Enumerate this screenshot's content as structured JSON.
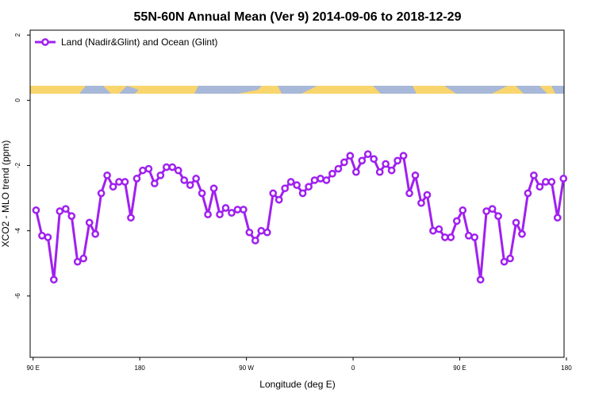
{
  "chart_data": {
    "type": "line",
    "title": "55N-60N Annual Mean (Ver 9)   2014-09-06 to 2018-12-29",
    "x_label": "Longitude (deg E)",
    "y_label": "XCO2 - MLO trend (ppm)",
    "series": [
      {
        "name": "Land (Nadir&Glint) and Ocean (Glint)",
        "color": "#a020f0",
        "x": [
          92.5,
          97.5,
          102.5,
          107.5,
          112.5,
          117.5,
          122.5,
          127.5,
          132.5,
          137.5,
          142.5,
          147.5,
          152.5,
          157.5,
          162.5,
          167.5,
          172.5,
          177.5,
          182.5,
          187.5,
          192.5,
          197.5,
          202.5,
          207.5,
          212.5,
          217.5,
          222.5,
          227.5,
          232.5,
          237.5,
          242.5,
          247.5,
          252.5,
          257.5,
          262.5,
          267.5,
          272.5,
          277.5,
          282.5,
          287.5,
          292.5,
          297.5,
          302.5,
          307.5,
          312.5,
          317.5,
          322.5,
          327.5,
          332.5,
          337.5,
          342.5,
          347.5,
          352.5,
          357.5,
          362.5,
          367.5,
          372.5,
          377.5,
          382.5,
          387.5,
          392.5,
          397.5,
          402.5,
          407.5,
          412.5,
          417.5,
          422.5,
          427.5,
          432.5,
          437.5,
          442.5,
          447.5,
          452.5,
          457.5,
          462.5,
          467.5,
          472.5,
          477.5,
          482.5,
          487.5,
          492.5,
          497.5,
          502.5,
          507.5,
          512.5,
          517.5,
          522.5,
          527.5,
          532.5,
          537.5
        ],
        "values": [
          -3.37,
          -4.15,
          -4.2,
          -5.5,
          -3.4,
          -3.33,
          -3.55,
          -4.95,
          -4.85,
          -3.75,
          -4.1,
          -2.85,
          -2.3,
          -2.65,
          -2.5,
          -2.5,
          -3.6,
          -2.4,
          -2.15,
          -2.1,
          -2.55,
          -2.3,
          -2.05,
          -2.05,
          -2.15,
          -2.45,
          -2.6,
          -2.4,
          -2.85,
          -3.5,
          -2.7,
          -3.5,
          -3.3,
          -3.45,
          -3.35,
          -3.35,
          -4.05,
          -4.3,
          -4.0,
          -4.05,
          -2.85,
          -3.05,
          -2.7,
          -2.5,
          -2.6,
          -2.85,
          -2.65,
          -2.45,
          -2.4,
          -2.45,
          -2.25,
          -2.1,
          -1.9,
          -1.7,
          -2.2,
          -1.85,
          -1.65,
          -1.8,
          -2.2,
          -1.95,
          -2.15,
          -1.85,
          -1.7,
          -2.85,
          -2.3,
          -3.15,
          -2.9,
          -4.0,
          -3.95,
          -4.2,
          -4.2,
          -3.7,
          -3.37,
          -4.15,
          -4.2,
          -5.5,
          -3.4,
          -3.33,
          -3.55,
          -4.95,
          -4.85,
          -3.75,
          -4.1,
          -2.85,
          -2.3,
          -2.65,
          -2.5,
          -2.5,
          -3.6,
          -2.4
        ]
      }
    ],
    "xlim": [
      87.5,
      538
    ],
    "xticks": [
      {
        "value": 90,
        "label": "90 E"
      },
      180,
      {
        "value": 270,
        "label": "90 W"
      },
      {
        "value": 360,
        "label": "0"
      },
      {
        "value": 450,
        "label": "90 E"
      },
      {
        "value": 540,
        "label": "180"
      }
    ],
    "ylim": [
      -7.88,
      2.15
    ],
    "yticks": [
      2,
      0,
      -2,
      -4,
      -6
    ],
    "legend": "top-left"
  }
}
